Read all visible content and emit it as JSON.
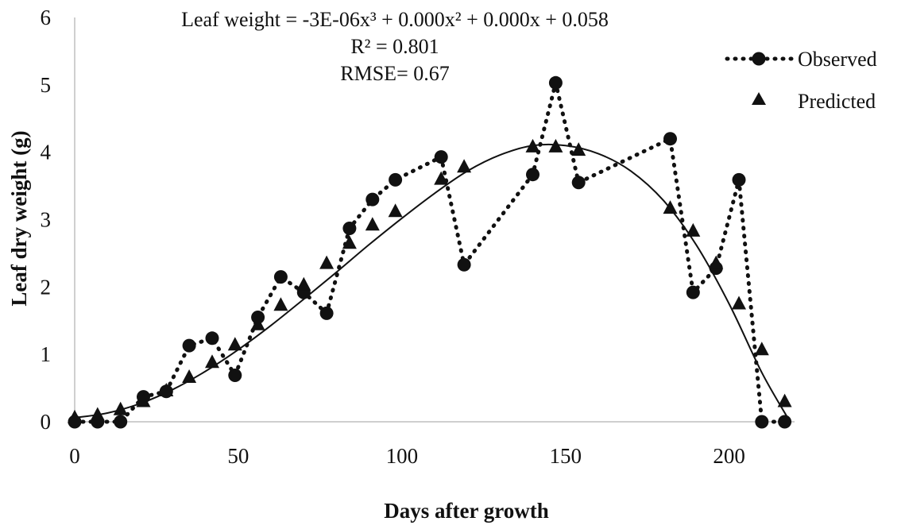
{
  "chart_data": {
    "type": "scatter",
    "xlabel": "Days after growth",
    "ylabel": "Leaf dry weight (g)",
    "xlim": [
      0,
      220
    ],
    "ylim": [
      0,
      6
    ],
    "x_ticks": [
      "0",
      "50",
      "100",
      "150",
      "200"
    ],
    "y_ticks": [
      "0",
      "1",
      "2",
      "3",
      "4",
      "5",
      "6"
    ],
    "grid": false,
    "legend_position": "top-right",
    "annotations": {
      "equation": "Leaf weight = -3E-06x³ + 0.000x² + 0.000x + 0.058",
      "r2": "R² = 0.801",
      "rmse": "RMSE= 0.67"
    },
    "series": [
      {
        "name": "Observed",
        "marker": "circle",
        "line": "dotted",
        "x": [
          0,
          7,
          14,
          21,
          28,
          35,
          42,
          49,
          56,
          63,
          70,
          77,
          84,
          91,
          98,
          112,
          119,
          140,
          147,
          154,
          182,
          189,
          196,
          203,
          210,
          217
        ],
        "y": [
          0.0,
          0.0,
          0.0,
          0.37,
          0.45,
          1.13,
          1.24,
          0.69,
          1.55,
          2.15,
          1.92,
          1.61,
          2.87,
          3.3,
          3.59,
          3.93,
          2.33,
          3.67,
          5.03,
          3.55,
          4.2,
          1.92,
          2.28,
          3.59,
          0.0,
          0.0
        ]
      },
      {
        "name": "Predicted",
        "marker": "triangle",
        "line": "none",
        "x": [
          0,
          7,
          14,
          21,
          28,
          35,
          42,
          49,
          56,
          63,
          70,
          77,
          84,
          91,
          98,
          112,
          119,
          140,
          147,
          154,
          182,
          189,
          196,
          203,
          210,
          217
        ],
        "y": [
          0.06,
          0.1,
          0.18,
          0.3,
          0.46,
          0.66,
          0.88,
          1.14,
          1.44,
          1.73,
          2.03,
          2.35,
          2.65,
          2.92,
          3.12,
          3.6,
          3.78,
          4.08,
          4.08,
          4.03,
          3.17,
          2.83,
          2.35,
          1.75,
          1.07,
          0.3
        ]
      },
      {
        "marker": "none",
        "line": "solid",
        "x": [
          0,
          10,
          20,
          30,
          40,
          50,
          60,
          70,
          80,
          90,
          100,
          110,
          120,
          130,
          140,
          150,
          160,
          170,
          180,
          190,
          200,
          210,
          218
        ],
        "y": [
          0.06,
          0.13,
          0.27,
          0.48,
          0.75,
          1.07,
          1.43,
          1.82,
          2.22,
          2.63,
          3.02,
          3.39,
          3.72,
          3.96,
          4.1,
          4.1,
          3.98,
          3.72,
          3.28,
          2.62,
          1.75,
          0.73,
          0.05
        ]
      }
    ]
  }
}
